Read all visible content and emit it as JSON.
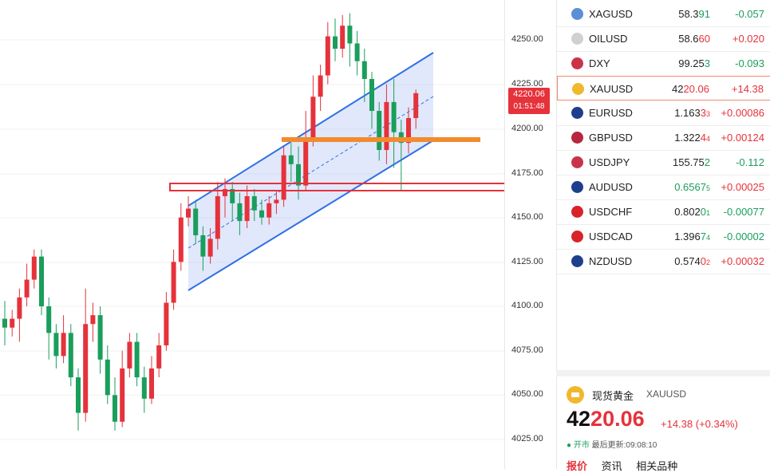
{
  "price_axis": {
    "ticks": [
      "4250.00",
      "4225.00",
      "4200.00",
      "4175.00",
      "4150.00",
      "4125.00",
      "4100.00",
      "4075.00",
      "4050.00",
      "4025.00"
    ],
    "current_price": "4220.06",
    "countdown": "01:51:48"
  },
  "watchlist": [
    {
      "symbol": "XAGUSD",
      "price_main": "58.3",
      "price_hl": "91",
      "price_small": "",
      "change": "-0.057",
      "dir": "down",
      "flag": "silver-icon"
    },
    {
      "symbol": "OILUSD",
      "price_main": "58.6",
      "price_hl": "60",
      "price_small": "",
      "change": "+0.020",
      "dir": "up",
      "flag": "oil-icon"
    },
    {
      "symbol": "DXY",
      "price_main": "99.25",
      "price_hl": "3",
      "price_small": "",
      "change": "-0.093",
      "dir": "down",
      "flag": "us-flag-icon"
    },
    {
      "symbol": "XAUUSD",
      "price_main": "42",
      "price_hl": "20.06",
      "price_small": "",
      "change": "+14.38",
      "dir": "up",
      "flag": "gold-icon"
    },
    {
      "symbol": "EURUSD",
      "price_main": "1.163",
      "price_hl": "3",
      "price_small": "3",
      "change": "+0.00086",
      "dir": "up",
      "flag": "eu-flag-icon"
    },
    {
      "symbol": "GBPUSD",
      "price_main": "1.322",
      "price_hl": "4",
      "price_small": "4",
      "change": "+0.00124",
      "dir": "up",
      "flag": "uk-flag-icon"
    },
    {
      "symbol": "USDJPY",
      "price_main": "155.75",
      "price_hl": "2",
      "price_small": "",
      "change": "-0.112",
      "dir": "down",
      "flag": "us-flag-icon"
    },
    {
      "symbol": "AUDUSD",
      "price_main": "0.656",
      "price_hl": "7",
      "price_small": "5",
      "change": "+0.00025",
      "dir": "up",
      "flag": "au-flag-icon"
    },
    {
      "symbol": "USDCHF",
      "price_main": "0.802",
      "price_hl": "0",
      "price_small": "1",
      "change": "-0.00077",
      "dir": "down",
      "flag": "ch-flag-icon"
    },
    {
      "symbol": "USDCAD",
      "price_main": "1.396",
      "price_hl": "7",
      "price_small": "4",
      "change": "-0.00002",
      "dir": "down",
      "flag": "ca-flag-icon"
    },
    {
      "symbol": "NZDUSD",
      "price_main": "0.574",
      "price_hl": "0",
      "price_small": "2",
      "change": "+0.00032",
      "dir": "up",
      "flag": "nz-flag-icon"
    }
  ],
  "colors": {
    "up": "#e5323b",
    "down": "#1a9e5b",
    "channel": "#2f6fe6",
    "resistance": "#f28b2e",
    "zone": "#e5323b"
  },
  "detail": {
    "name": "现货黄金",
    "code": "XAUUSD",
    "price_int": "42",
    "price_dec": "20.06",
    "change": "+14.38 (+0.34%)",
    "status_open": "开市",
    "status_updated": "最后更新:09:08:10",
    "tabs": [
      "报价",
      "资讯",
      "相关品种"
    ]
  }
}
